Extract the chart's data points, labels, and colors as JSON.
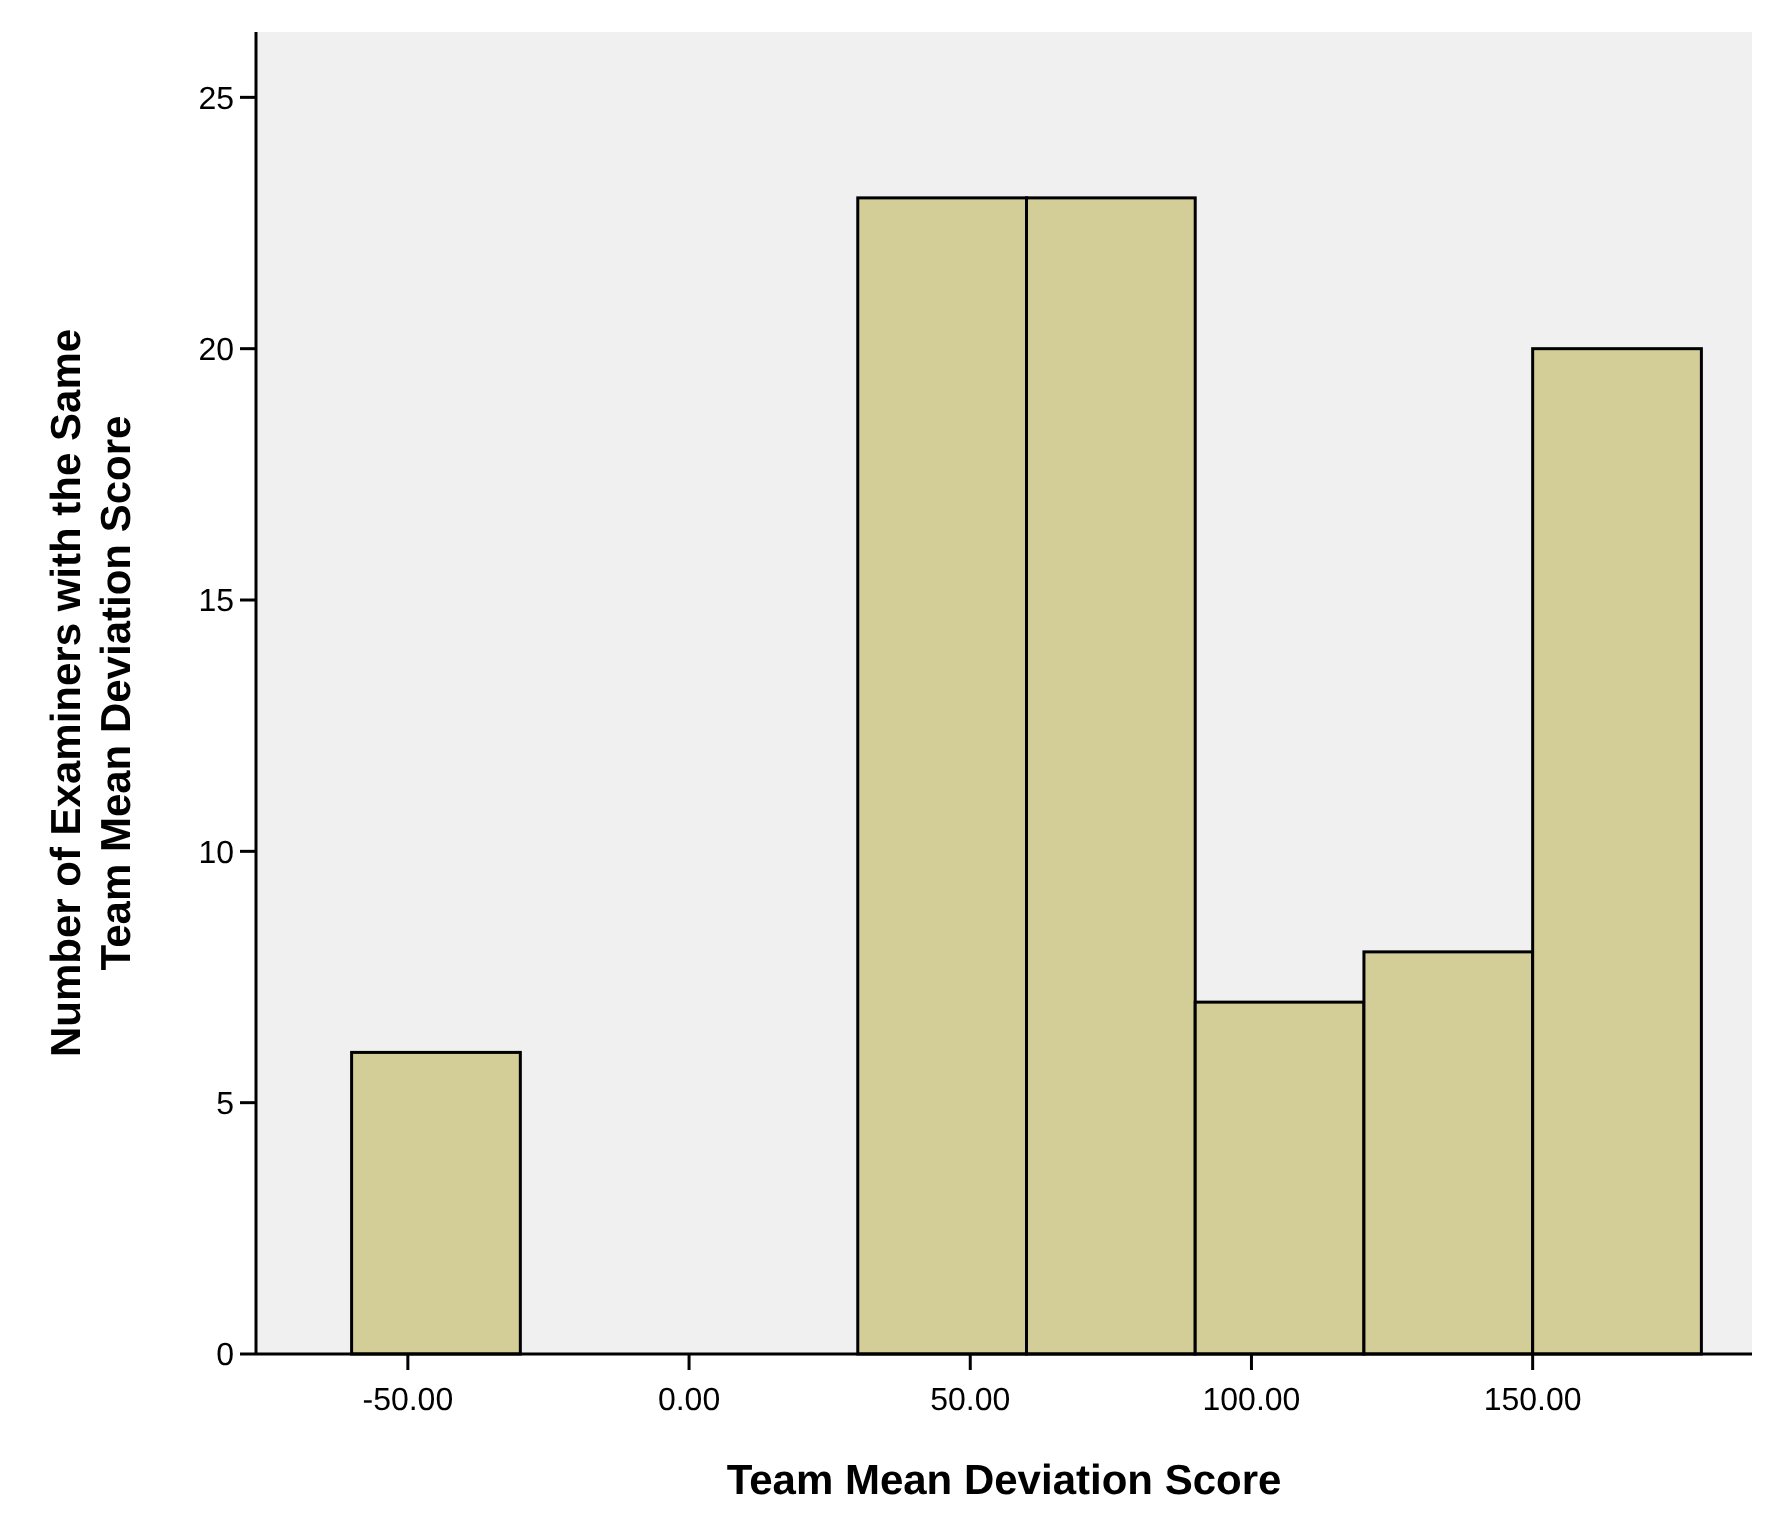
{
  "chart_data": {
    "type": "histogram",
    "xlabel": "Team Mean Deviation Score",
    "ylabel": "Number of Examiners with the Same\nTeam Mean Deviation Score",
    "bins": [
      -60,
      -30,
      0,
      30,
      60,
      90,
      120,
      150,
      180
    ],
    "values": [
      6,
      0,
      0,
      23,
      23,
      7,
      8,
      20
    ],
    "color": "#d3ce97",
    "xlim": [
      -77,
      189
    ],
    "xticks": [
      {
        "value": -50,
        "label": "-50.00"
      },
      {
        "value": 0,
        "label": "0.00"
      },
      {
        "value": 50,
        "label": "50.00"
      },
      {
        "value": 100,
        "label": "100.00"
      },
      {
        "value": 150,
        "label": "150.00"
      }
    ],
    "ylim": [
      0,
      26.3
    ],
    "yticks": [
      0,
      5,
      10,
      15,
      20,
      25
    ],
    "grid": false
  }
}
